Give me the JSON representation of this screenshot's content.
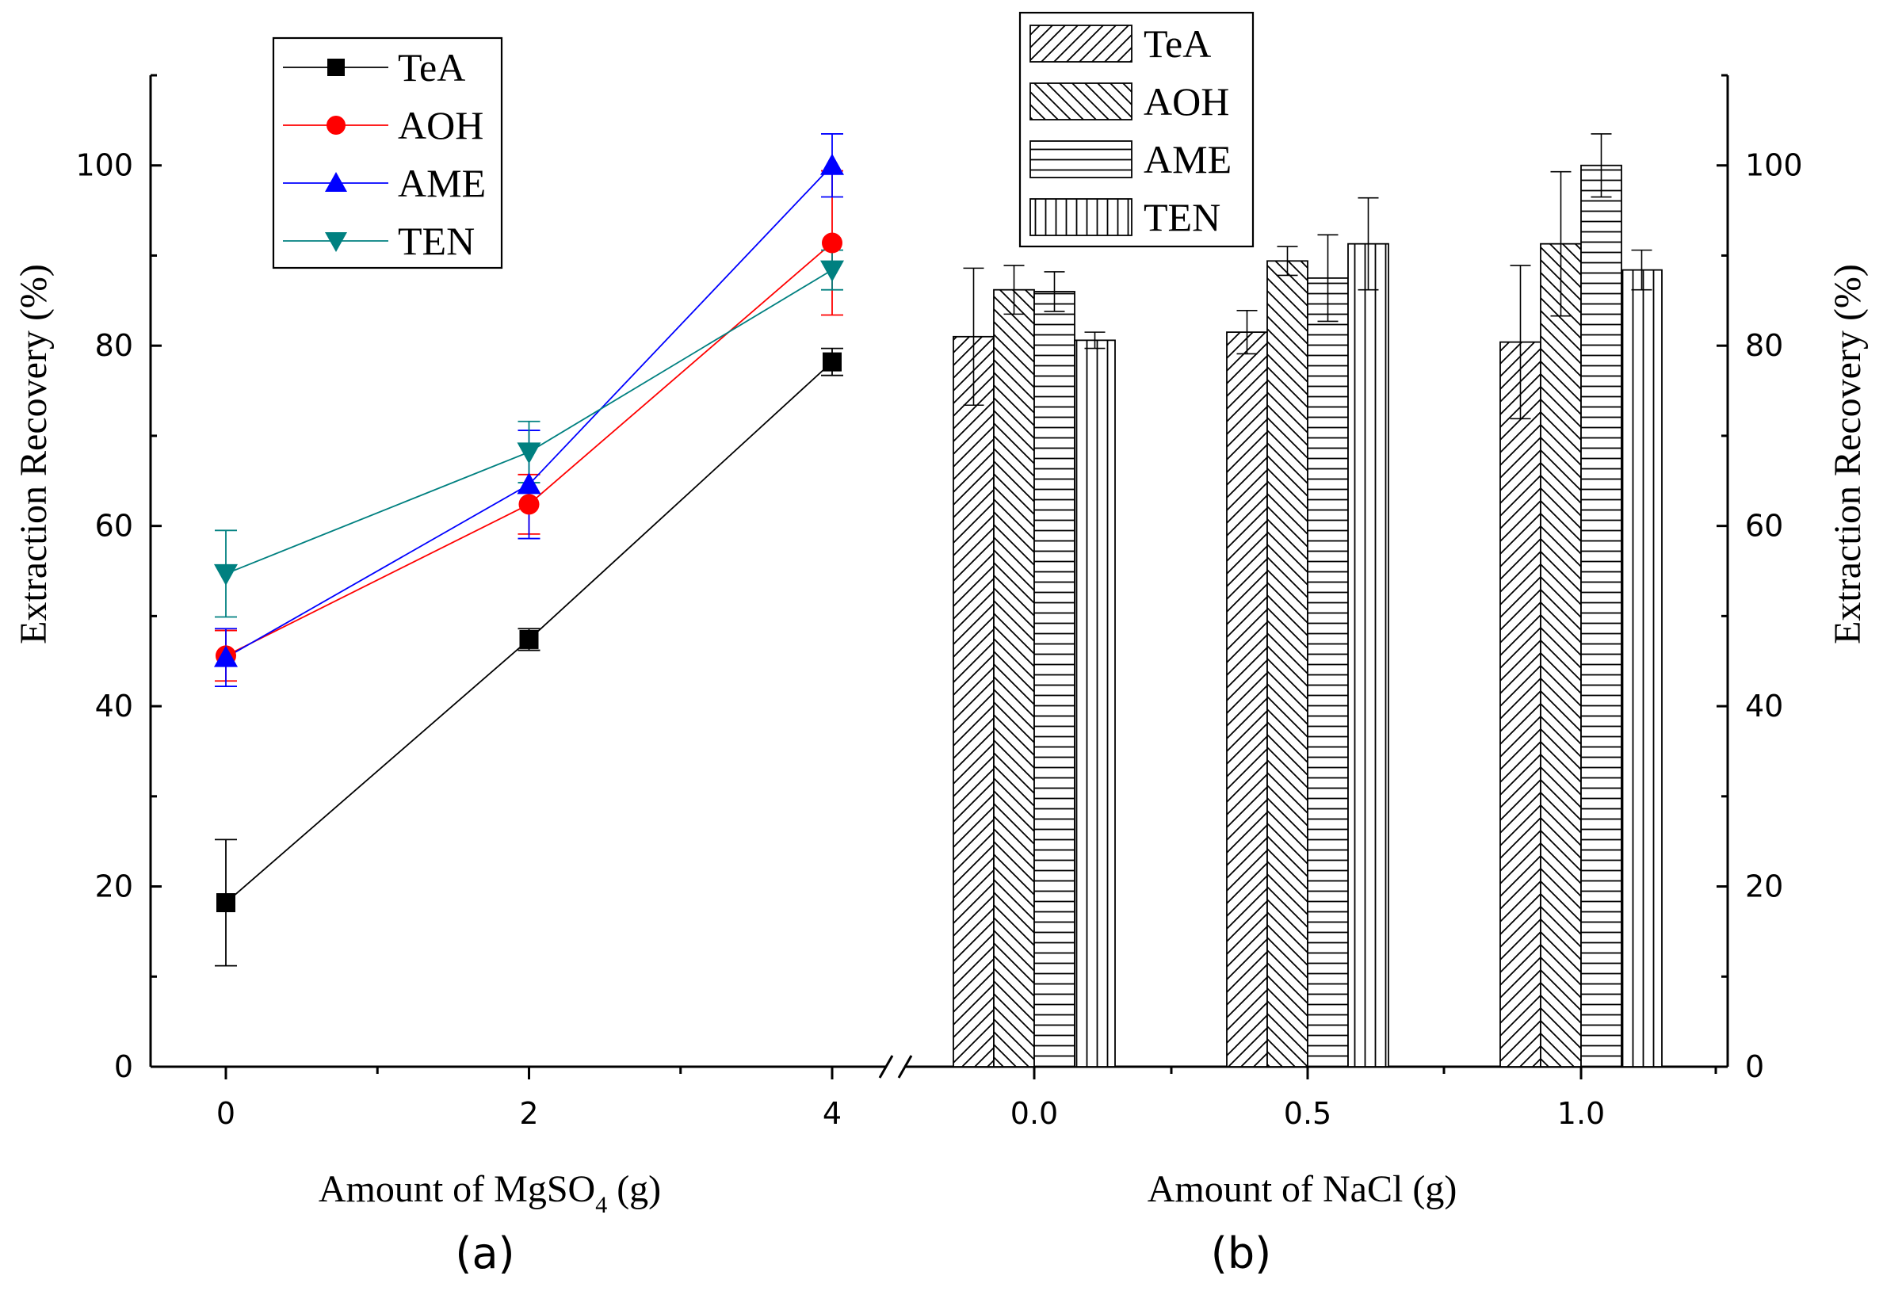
{
  "chart_data": [
    {
      "type": "line",
      "panel_label": "(a)",
      "xlabel_prefix": "Amount of MgSO",
      "xlabel_sub": "4",
      "xlabel_suffix": " (g)",
      "ylabel": "Extraction Recovery (%)",
      "x": [
        0,
        2,
        4
      ],
      "x_tick_labels": [
        "0",
        "2",
        "4"
      ],
      "xlim": [
        -0.5,
        4.4
      ],
      "ylim": [
        0,
        110
      ],
      "y_ticks": [
        0,
        20,
        40,
        60,
        80,
        100
      ],
      "y_tick_labels": [
        "0",
        "20",
        "40",
        "60",
        "80",
        "100"
      ],
      "legend_position": "top-left",
      "series": [
        {
          "name": "TeA",
          "color": "#000000",
          "marker": "square",
          "values": [
            18.2,
            47.4,
            78.2
          ],
          "errors": [
            7.0,
            1.2,
            1.5
          ]
        },
        {
          "name": "AOH",
          "color": "#ff0000",
          "marker": "circle",
          "values": [
            45.6,
            62.4,
            91.4
          ],
          "errors": [
            2.8,
            3.3,
            8.0
          ]
        },
        {
          "name": "AME",
          "color": "#0000ff",
          "marker": "triangle-up",
          "values": [
            45.4,
            64.6,
            100.0
          ],
          "errors": [
            3.2,
            6.0,
            3.5
          ]
        },
        {
          "name": "TEN",
          "color": "#008080",
          "marker": "triangle-down",
          "values": [
            54.7,
            68.2,
            88.4
          ],
          "errors": [
            4.8,
            3.4,
            2.2
          ]
        }
      ]
    },
    {
      "type": "bar",
      "panel_label": "(b)",
      "xlabel": "Amount of NaCl (g)",
      "ylabel": "Extraction Recovery (%)",
      "categories": [
        "0.0",
        "0.5",
        "1.0"
      ],
      "ylim": [
        0,
        110
      ],
      "y_ticks": [
        0,
        20,
        40,
        60,
        80,
        100
      ],
      "y_tick_labels": [
        "0",
        "20",
        "40",
        "60",
        "80",
        "100"
      ],
      "legend_position": "top",
      "series": [
        {
          "name": "TeA",
          "pattern": "diagonal-forward",
          "values": [
            81.0,
            81.5,
            80.4
          ],
          "errors": [
            7.6,
            2.4,
            8.5
          ]
        },
        {
          "name": "AOH",
          "pattern": "diagonal-back",
          "values": [
            86.2,
            89.4,
            91.3
          ],
          "errors": [
            2.7,
            1.6,
            8.0
          ]
        },
        {
          "name": "AME",
          "pattern": "horizontal",
          "values": [
            86.0,
            87.5,
            100.0
          ],
          "errors": [
            2.2,
            4.8,
            3.5
          ]
        },
        {
          "name": "TEN",
          "pattern": "vertical",
          "values": [
            80.6,
            91.3,
            88.4
          ],
          "errors": [
            0.9,
            5.1,
            2.2
          ]
        }
      ]
    }
  ]
}
